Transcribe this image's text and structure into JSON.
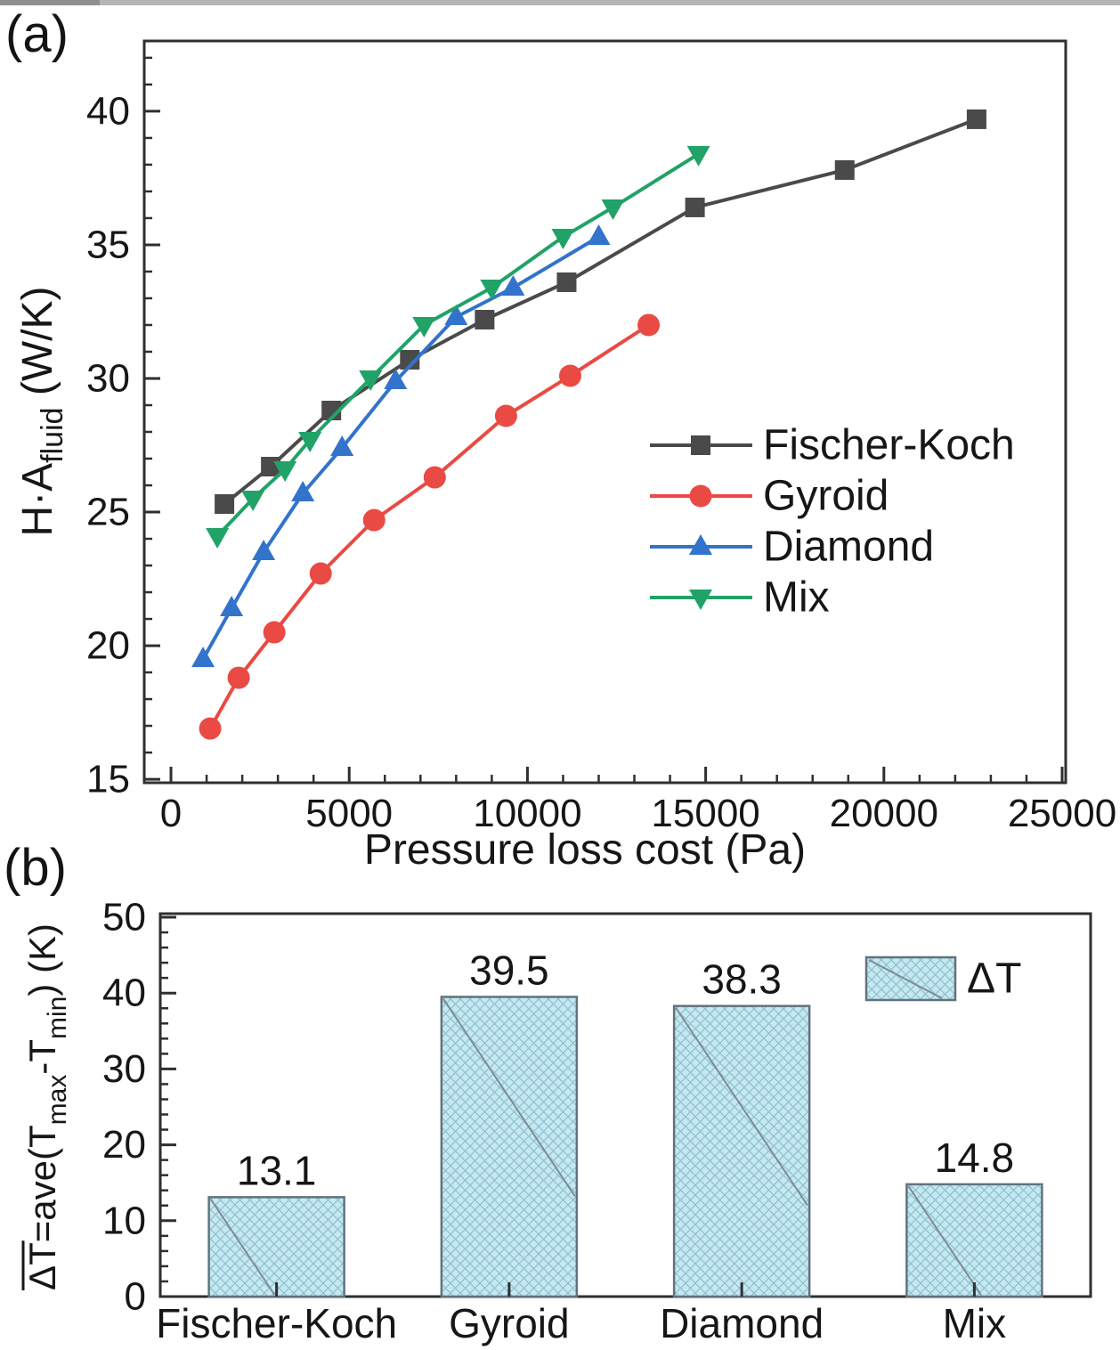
{
  "page": {
    "background": "#ffffff",
    "top_strip_color": "#b5b5b5",
    "top_strip_dark_color": "#8f8f8f"
  },
  "panels": [
    {
      "label": "(a)"
    },
    {
      "label": "(b)"
    }
  ],
  "chart_data": [
    {
      "type": "line",
      "title": "",
      "xlabel": "Pressure loss cost (Pa)",
      "ylabel_parts": [
        {
          "text": "H·A"
        },
        {
          "text": "fluid",
          "sub": true
        },
        {
          "text": " (W/K)"
        }
      ],
      "xlim": [
        -750,
        25100
      ],
      "ylim": [
        14.87,
        42.63
      ],
      "xticks": [
        0,
        5000,
        10000,
        15000,
        20000,
        25000
      ],
      "yticks": [
        15,
        20,
        25,
        30,
        35,
        40
      ],
      "x_minor_step": 1000,
      "y_minor_step": 1,
      "grid": false,
      "frame_color": "#2f2f2f",
      "legend_position": "right-center",
      "series": [
        {
          "name": "Fischer-Koch",
          "color": "#4a4a4a",
          "marker": "square",
          "points": [
            [
              1500,
              25.3
            ],
            [
              2800,
              26.7
            ],
            [
              4500,
              28.8
            ],
            [
              6700,
              30.7
            ],
            [
              8800,
              32.2
            ],
            [
              11100,
              33.6
            ],
            [
              14700,
              36.4
            ],
            [
              18900,
              37.8
            ],
            [
              22600,
              39.7
            ]
          ]
        },
        {
          "name": "Gyroid",
          "color": "#ea4a44",
          "marker": "circle",
          "points": [
            [
              1100,
              16.9
            ],
            [
              1900,
              18.8
            ],
            [
              2900,
              20.5
            ],
            [
              4200,
              22.7
            ],
            [
              5700,
              24.7
            ],
            [
              7400,
              26.3
            ],
            [
              9400,
              28.6
            ],
            [
              11200,
              30.1
            ],
            [
              13400,
              32.0
            ]
          ]
        },
        {
          "name": "Diamond",
          "color": "#3273cc",
          "marker": "triangle-up",
          "points": [
            [
              900,
              19.5
            ],
            [
              1700,
              21.4
            ],
            [
              2600,
              23.5
            ],
            [
              3700,
              25.7
            ],
            [
              4800,
              27.4
            ],
            [
              6300,
              29.9
            ],
            [
              8000,
              32.3
            ],
            [
              9600,
              33.4
            ],
            [
              12000,
              35.3
            ]
          ]
        },
        {
          "name": "Mix",
          "color": "#21a267",
          "marker": "triangle-down",
          "points": [
            [
              1300,
              24.1
            ],
            [
              2300,
              25.5
            ],
            [
              3200,
              26.6
            ],
            [
              3900,
              27.7
            ],
            [
              5600,
              30.0
            ],
            [
              7100,
              32.0
            ],
            [
              9000,
              33.4
            ],
            [
              11000,
              35.3
            ],
            [
              12400,
              36.4
            ],
            [
              14800,
              38.4
            ]
          ]
        }
      ]
    },
    {
      "type": "bar",
      "title": "",
      "categories": [
        "Fischer-Koch",
        "Gyroid",
        "Diamond",
        "Mix"
      ],
      "values": [
        13.1,
        39.5,
        38.3,
        14.8
      ],
      "bar_labels": [
        "13.1",
        "39.5",
        "38.3",
        "14.8"
      ],
      "ylabel_parts": [
        {
          "text": "ΔT=ave(T",
          "overline_chars": 2
        },
        {
          "text": "max",
          "sub": true
        },
        {
          "text": "-T"
        },
        {
          "text": "min",
          "sub": true
        },
        {
          "text": ") (K)"
        }
      ],
      "ylim": [
        0,
        50
      ],
      "yticks": [
        0,
        10,
        20,
        30,
        40,
        50
      ],
      "y_minor_step": 2,
      "grid": false,
      "frame_color": "#2f2f2f",
      "bar_fill": "#c6e8f1",
      "bar_hatch_color": "#8fc2d1",
      "bar_border_color": "#60737c",
      "bar_diagonal_color": "#7d8d93",
      "legend": {
        "label": "ΔT",
        "position": "top-right"
      }
    }
  ]
}
